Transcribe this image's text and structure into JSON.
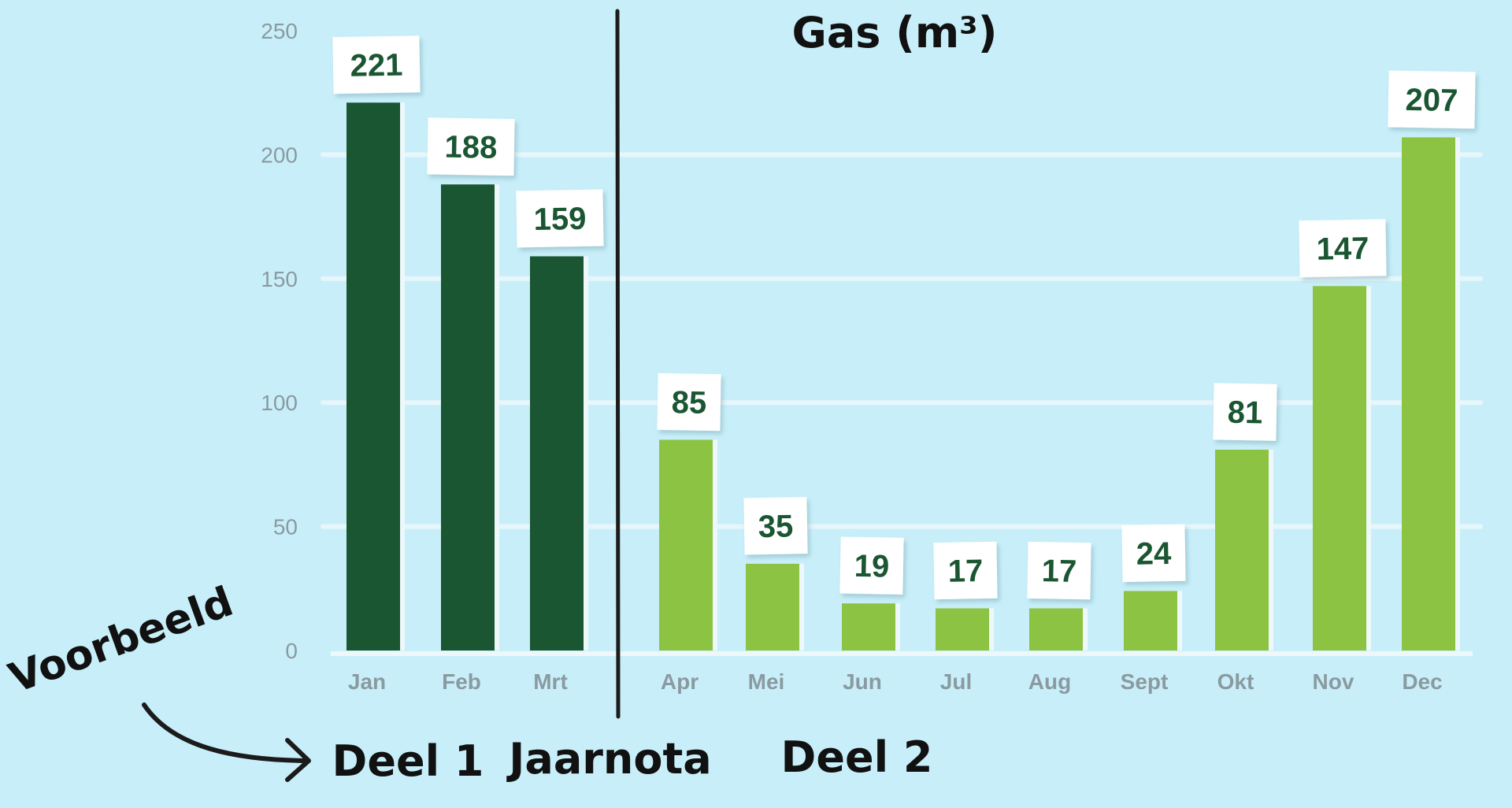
{
  "chart_data": {
    "type": "bar",
    "title": "Gas (m³)",
    "categories": [
      "Jan",
      "Feb",
      "Mrt",
      "Apr",
      "Mei",
      "Jun",
      "Jul",
      "Aug",
      "Sept",
      "Okt",
      "Nov",
      "Dec"
    ],
    "values": [
      221,
      188,
      159,
      85,
      35,
      19,
      17,
      17,
      24,
      81,
      147,
      207
    ],
    "ylim": [
      0,
      250
    ],
    "yticks": [
      0,
      50,
      100,
      150,
      200,
      250
    ],
    "grid": true,
    "groups": [
      {
        "name": "Deel 1",
        "months": [
          "Jan",
          "Feb",
          "Mrt"
        ],
        "color": "#1a5632"
      },
      {
        "name": "Deel 2",
        "months": [
          "Apr",
          "Mei",
          "Jun",
          "Jul",
          "Aug",
          "Sept",
          "Okt",
          "Nov",
          "Dec"
        ],
        "color": "#8cc342"
      }
    ],
    "divider_label": "Jaarnota",
    "annotation": "Voorbeeld"
  },
  "colors": {
    "background": "#c8eff9",
    "label_text": "#1a5632",
    "axis_text": "#8a9aa0",
    "gridline": "#e6f6fb"
  }
}
